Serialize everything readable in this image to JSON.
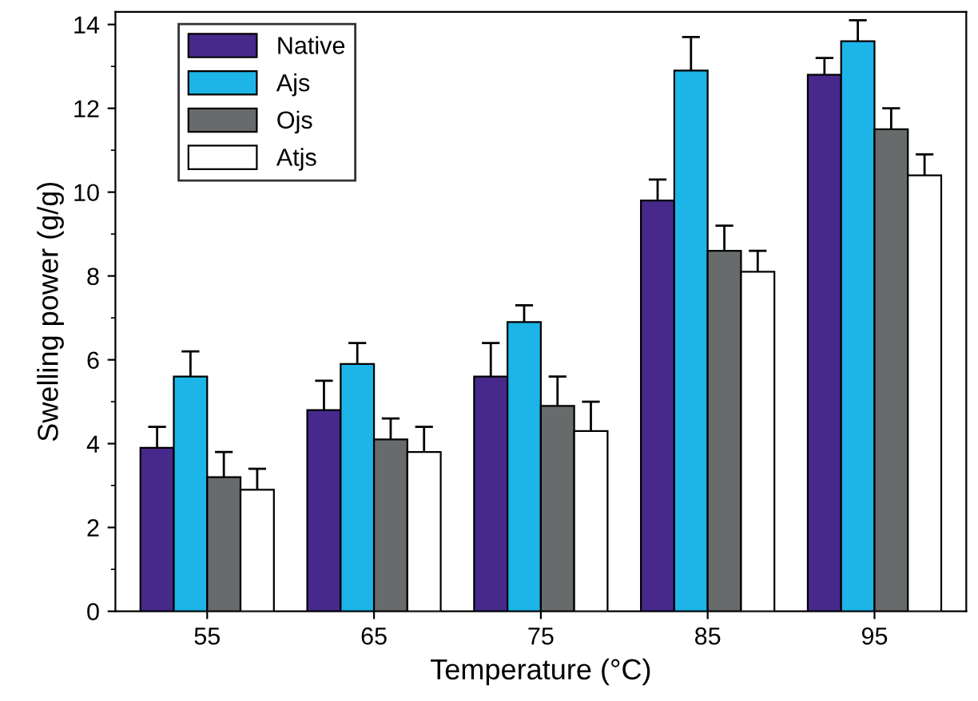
{
  "chart_data": {
    "type": "bar",
    "xlabel": "Temperature (°C)",
    "ylabel": "Swelling power (g/g)",
    "categories": [
      "55",
      "65",
      "75",
      "85",
      "95"
    ],
    "series": [
      {
        "name": "Native",
        "color": "#46298a",
        "values": [
          3.9,
          4.8,
          5.6,
          9.8,
          12.8
        ],
        "errors": [
          0.5,
          0.7,
          0.8,
          0.5,
          0.4
        ]
      },
      {
        "name": "Ajs",
        "color": "#1db4e8",
        "values": [
          5.6,
          5.9,
          6.9,
          12.9,
          13.6
        ],
        "errors": [
          0.6,
          0.5,
          0.4,
          0.8,
          0.5
        ]
      },
      {
        "name": "Ojs",
        "color": "#676b6b",
        "values": [
          3.2,
          4.1,
          4.9,
          8.6,
          11.5
        ],
        "errors": [
          0.6,
          0.5,
          0.7,
          0.6,
          0.5
        ]
      },
      {
        "name": "Atjs",
        "color": "#ffffff",
        "values": [
          2.9,
          3.8,
          4.3,
          8.1,
          10.4
        ],
        "errors": [
          0.5,
          0.6,
          0.7,
          0.5,
          0.5
        ]
      }
    ],
    "ylim": [
      0,
      14.3
    ],
    "yticks": [
      0,
      2,
      4,
      6,
      8,
      10,
      12,
      14
    ],
    "grid": false,
    "legend": "top left"
  }
}
